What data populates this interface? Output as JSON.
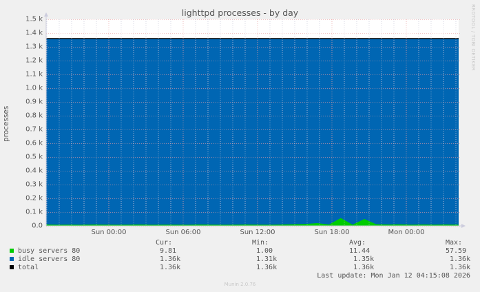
{
  "title": "lighttpd processes - by day",
  "side_credit": "RRDTOOL / TOBI OETIKER",
  "footer": "Munin 2.0.76",
  "last_update": "Last update: Mon Jan 12 04:15:08 2026",
  "legend": {
    "headers": [
      "Cur:",
      "Min:",
      "Avg:",
      "Max:"
    ],
    "rows": [
      {
        "label": "busy servers 80",
        "color": "#00cc00",
        "cur": "9.81",
        "min": "1.00",
        "avg": "11.44",
        "max": "57.59"
      },
      {
        "label": "idle servers 80",
        "color": "#0066b3",
        "cur": "1.36k",
        "min": "1.31k",
        "avg": "1.35k",
        "max": "1.36k"
      },
      {
        "label": "total",
        "color": "#000000",
        "cur": "1.36k",
        "min": "1.36k",
        "avg": "1.36k",
        "max": "1.36k"
      }
    ]
  },
  "chart_data": {
    "type": "area",
    "title": "lighttpd processes - by day",
    "xlabel": "",
    "ylabel": "processes",
    "ylim": [
      0,
      1500
    ],
    "grid": true,
    "legend_position": "bottom",
    "y_ticks": [
      "0.0",
      "0.1 k",
      "0.2 k",
      "0.3 k",
      "0.4 k",
      "0.5 k",
      "0.6 k",
      "0.7 k",
      "0.8 k",
      "0.9 k",
      "1.0 k",
      "1.1 k",
      "1.2 k",
      "1.3 k",
      "1.4 k",
      "1.5 k"
    ],
    "x_ticks": [
      "Sun 00:00",
      "Sun 06:00",
      "Sun 12:00",
      "Sun 18:00",
      "Mon 00:00"
    ],
    "stacked": true,
    "series": [
      {
        "name": "busy servers 80",
        "color": "#00cc00",
        "cur": 9.81,
        "min": 1.0,
        "avg": 11.44,
        "max": 57.59,
        "approx_profile": [
          10,
          8,
          9,
          8,
          10,
          9,
          8,
          9,
          10,
          8,
          9,
          9,
          8,
          10,
          9,
          8,
          9,
          10,
          9,
          8,
          10,
          12,
          14,
          20,
          10,
          57,
          9,
          50,
          12,
          10,
          11,
          9,
          10,
          9,
          10,
          9
        ]
      },
      {
        "name": "idle servers 80",
        "color": "#0066b3",
        "cur": 1360,
        "min": 1310,
        "avg": 1350,
        "max": 1360
      },
      {
        "name": "total",
        "color": "#000000",
        "cur": 1360,
        "min": 1360,
        "avg": 1360,
        "max": 1360
      }
    ]
  }
}
